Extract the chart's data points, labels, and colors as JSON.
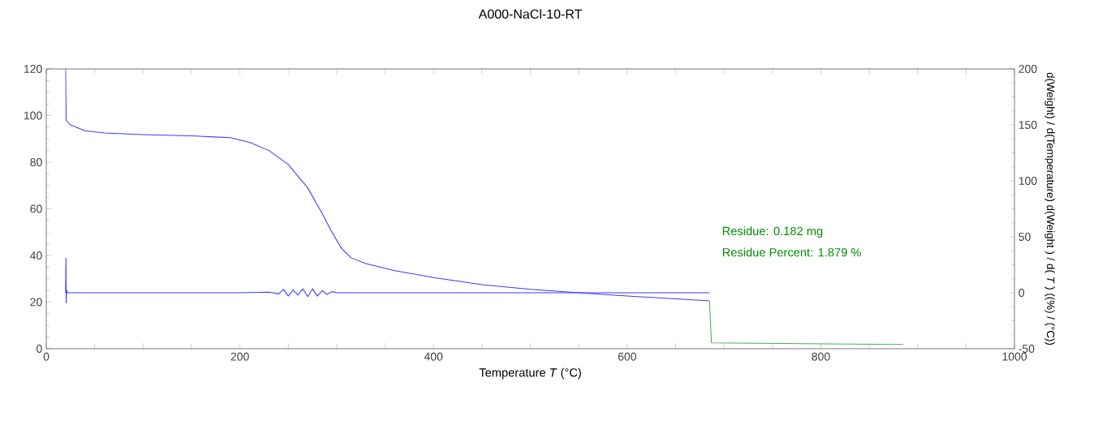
{
  "chart_data": {
    "type": "line",
    "title": "A000-NaCl-10-RT",
    "xlabel": "Temperature *T* (°C)",
    "y2label": "d(Weight) / d(Temperature) d(Weight ) / d( *T* ) ((%) / (°C))",
    "xlim": [
      0,
      1000
    ],
    "ylim": [
      0,
      120
    ],
    "y2lim": [
      -50,
      200
    ],
    "xticks": [
      0,
      {
        "value": 50,
        "label": null
      },
      {
        "value": 100,
        "label": null
      },
      {
        "value": 150,
        "label": null
      },
      200,
      {
        "value": 250,
        "label": null
      },
      {
        "value": 300,
        "label": null
      },
      {
        "value": 350,
        "label": null
      },
      400,
      {
        "value": 450,
        "label": null
      },
      {
        "value": 500,
        "label": null
      },
      {
        "value": 550,
        "label": null
      },
      600,
      {
        "value": 650,
        "label": null
      },
      {
        "value": 700,
        "label": null
      },
      {
        "value": 750,
        "label": null
      },
      800,
      {
        "value": 850,
        "label": null
      },
      {
        "value": 900,
        "label": null
      },
      {
        "value": 950,
        "label": null
      },
      1000
    ],
    "yticks": [
      0,
      20,
      40,
      60,
      80,
      100,
      120
    ],
    "y2ticks": [
      -50,
      0,
      50,
      100,
      150,
      200
    ],
    "series": [
      {
        "color": "#3b3bff",
        "x": [
          20,
          20.5,
          25,
          40,
          60,
          100,
          150,
          190,
          210,
          230,
          250,
          270,
          285,
          295,
          305,
          315,
          330,
          360,
          400,
          450,
          500,
          550,
          600,
          650,
          685
        ],
        "values": [
          120,
          98,
          96,
          93.5,
          92.5,
          91.8,
          91.3,
          90.5,
          88.5,
          85,
          79,
          69,
          58,
          50,
          43,
          39,
          36.5,
          33.5,
          30.5,
          27.5,
          25.5,
          24,
          22.6,
          21.4,
          20.5
        ]
      },
      {
        "color": "#3b3bff",
        "axis": "y2",
        "x": [
          20,
          20.3,
          20.6,
          21,
          22,
          100,
          200,
          230,
          240,
          245,
          250,
          255,
          260,
          265,
          270,
          275,
          280,
          285,
          290,
          295,
          300,
          400,
          500,
          600,
          685
        ],
        "values": [
          0,
          31,
          -9,
          2,
          0,
          0,
          0,
          0.5,
          -1,
          3,
          -3,
          2.5,
          -2,
          3.5,
          -3.5,
          3.5,
          -3,
          2,
          -1.5,
          1,
          0,
          0,
          0,
          0,
          0
        ]
      },
      {
        "color": "#4caf50",
        "x": [
          685,
          687,
          885
        ],
        "values": [
          20.5,
          2.5,
          1.8
        ]
      }
    ],
    "annotations": [
      "Residue: 0.182 mg",
      "Residue Percent: 1.879 %"
    ]
  }
}
